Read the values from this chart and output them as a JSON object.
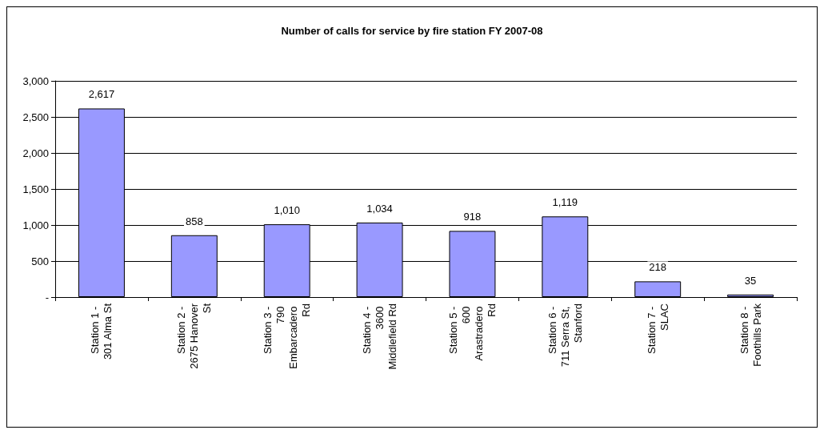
{
  "chart_data": {
    "type": "bar",
    "title": "Number of calls for service by fire station FY 2007-08",
    "categories": [
      "Station 1 - 301 Alma St",
      "Station 2 - 2675 Hanover St",
      "Station 3 - 790 Embarcadero Rd",
      "Station 4 - 3600 Middlefield Rd",
      "Station 5 - 600 Arastradero Rd",
      "Station 6 - 711 Serra St, Stanford",
      "Station 7 - SLAC",
      "Station 8 - Foothills Park"
    ],
    "values": [
      2617,
      858,
      1010,
      1034,
      918,
      1119,
      218,
      35
    ],
    "color": "#9999ff",
    "ylim": [
      0,
      3000
    ],
    "value_labels": [
      "2,617",
      "858",
      "1,010",
      "1,034",
      "918",
      "1,119",
      "218",
      "35"
    ],
    "yticks": [
      {
        "value": 0,
        "label": "-"
      },
      500,
      {
        "value": 1000,
        "label": "1,000"
      },
      {
        "value": 1500,
        "label": "1,500"
      },
      {
        "value": 2000,
        "label": "2,000"
      },
      {
        "value": 2500,
        "label": "2,500"
      },
      {
        "value": 3000,
        "label": "3,000"
      }
    ],
    "grid": "y"
  }
}
